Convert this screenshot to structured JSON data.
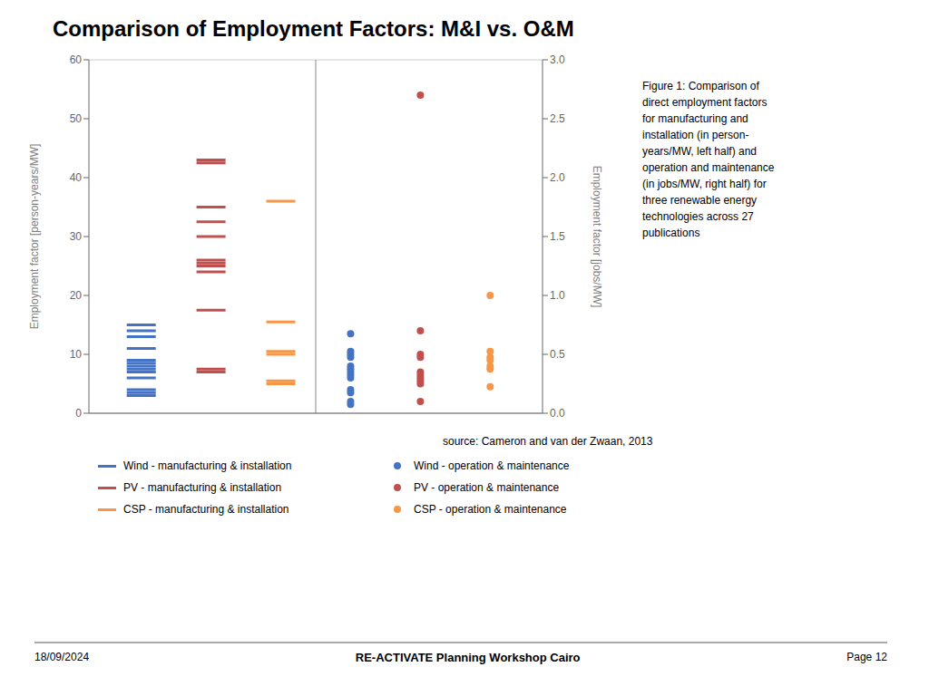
{
  "chart_data": {
    "type": "scatter",
    "title": "Comparison of Employment Factors: M&I vs. O&M",
    "ylabel": "Employment factor [person-years/MW]",
    "y2label": "Employment factor [jobs/MW]",
    "categories": [
      null,
      null,
      null,
      null,
      null,
      null
    ],
    "ylim": [
      0,
      60
    ],
    "yticks": [
      0,
      10,
      20,
      30,
      40,
      50,
      60
    ],
    "y2lim": [
      0,
      3
    ],
    "y2ticks": [
      {
        "value": 0,
        "label": "0.0"
      },
      0.5,
      {
        "value": 1.0,
        "label": "1.0"
      },
      1.5,
      {
        "value": 2.0,
        "label": "2.0"
      },
      2.5,
      {
        "value": 3.0,
        "label": "3.0"
      }
    ],
    "grid": true,
    "legend": "bottom",
    "tick_labels": "y",
    "annotations": [
      "Figure 1: Comparison of\ndirect employment factors\nfor manufacturing and\ninstallation (in person-\nyears/MW, left half) and\noperation and maintenance\n(in jobs/MW, right half) for\nthree renewable energy\ntechnologies across 27\npublications",
      "source: Cameron and van der Zwaan, 2013",
      "18/09/2024",
      "RE-ACTIVATE Planning Workshop Cairo",
      "Page 12"
    ],
    "series": [
      {
        "name": "Wind - manufacturing & installation",
        "color": "#4472c4",
        "marker": "dash",
        "values": [
          [
            3,
            3.5,
            4,
            6,
            7,
            7.5,
            8,
            8.5,
            9,
            11,
            13,
            14,
            15
          ],
          null,
          null,
          null,
          null,
          null
        ]
      },
      {
        "name": "PV - manufacturing & installation",
        "color": "#c0504d",
        "marker": "dash",
        "values": [
          null,
          [
            7,
            7.5,
            17.5,
            24,
            25,
            25.5,
            26,
            30,
            32.5,
            35,
            42.5,
            43
          ],
          null,
          null,
          null,
          null
        ]
      },
      {
        "name": "CSP - manufacturing & installation",
        "color": "#f79646",
        "marker": "dash",
        "values": [
          null,
          null,
          [
            5,
            5.5,
            10,
            10.5,
            15.5,
            36
          ],
          null,
          null,
          null
        ]
      },
      {
        "name": "Wind - operation & maintenance",
        "color": "#4472c4",
        "marker": "circle",
        "values": [
          null,
          null,
          null,
          [
            1.5,
            2,
            3.5,
            4,
            6,
            6.5,
            7,
            7.5,
            8,
            9.5,
            10,
            10.5,
            13.5
          ],
          null,
          null
        ]
      },
      {
        "name": "PV - operation & maintenance",
        "color": "#c0504d",
        "marker": "circle",
        "values": [
          null,
          null,
          null,
          null,
          [
            2,
            5,
            5.5,
            6,
            6.5,
            7,
            9.5,
            10,
            14,
            54
          ],
          null
        ]
      },
      {
        "name": "CSP - operation & maintenance",
        "color": "#f79646",
        "marker": "circle",
        "values": [
          null,
          null,
          null,
          null,
          null,
          [
            4.5,
            7.5,
            8,
            9,
            9.5,
            10.5,
            20
          ]
        ]
      }
    ]
  }
}
